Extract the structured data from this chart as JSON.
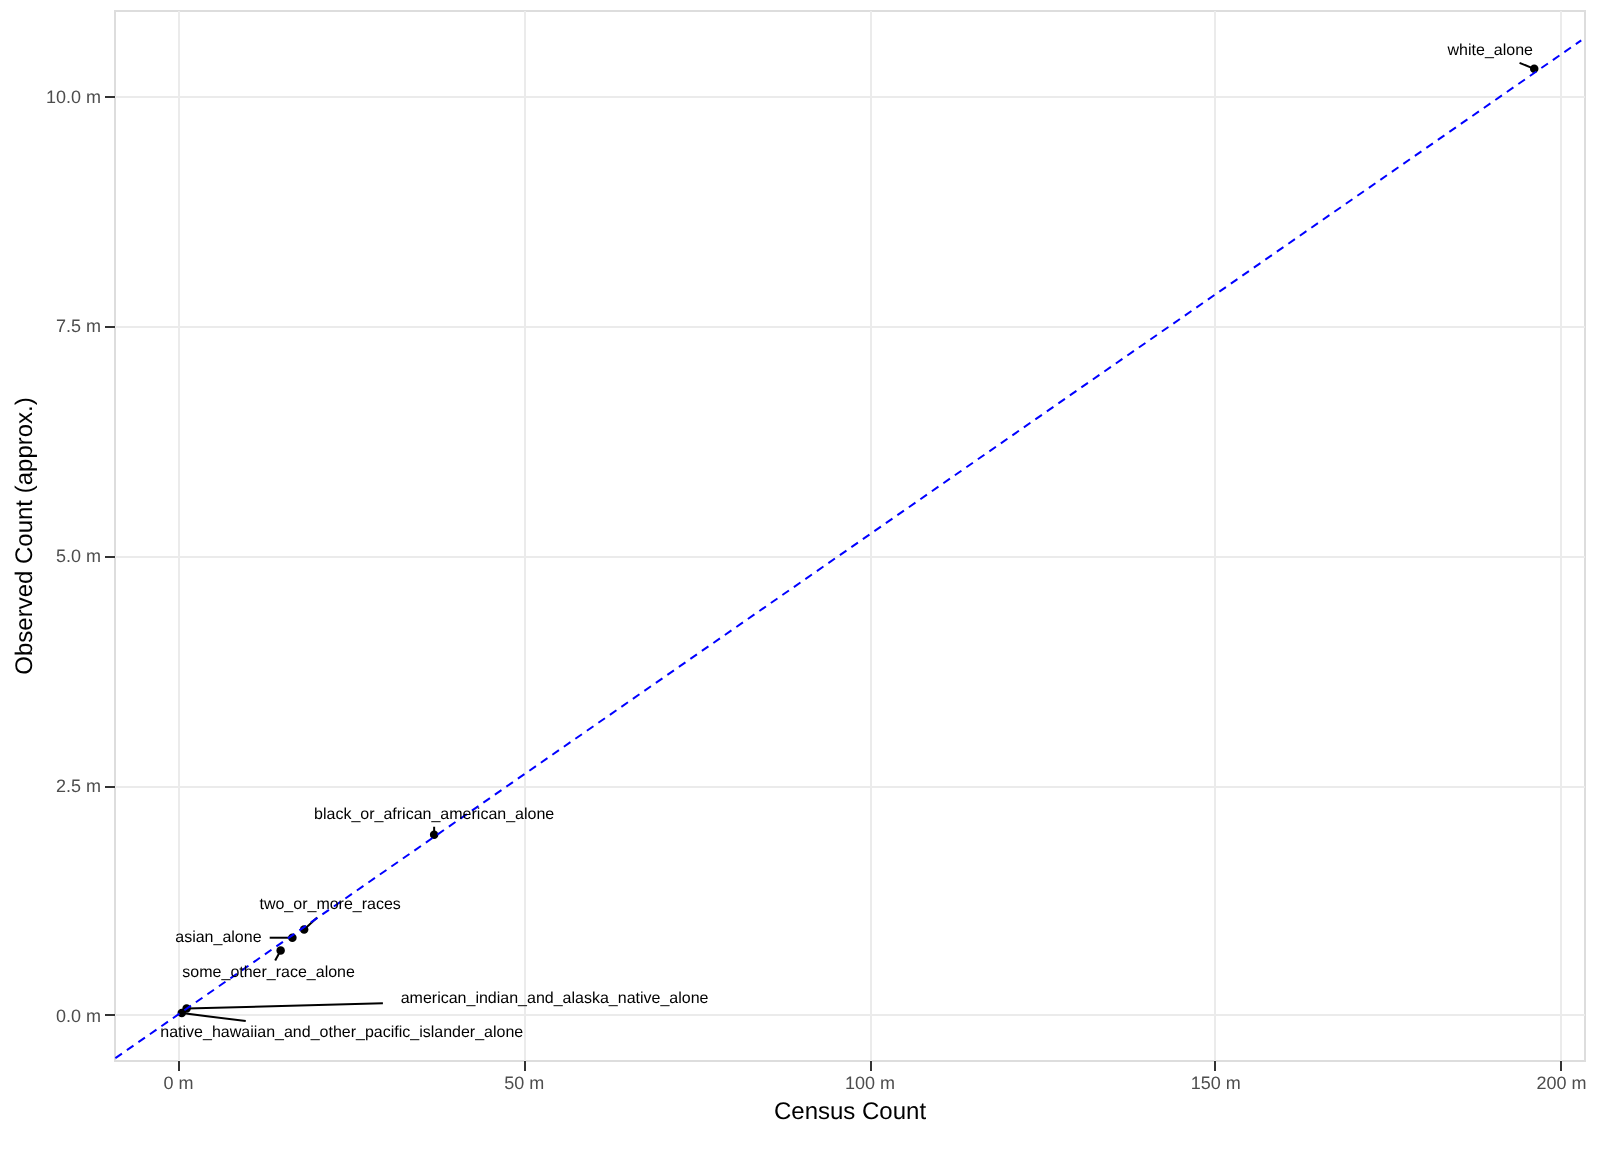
{
  "chart_data": {
    "type": "scatter",
    "xlabel": "Census Count",
    "ylabel": "Observed Count (approx.)",
    "x": [
      196.2,
      37.1,
      18.3,
      16.6,
      14.9,
      1.3,
      0.6
    ],
    "series": [
      {
        "color": "#000000",
        "marker": "circle",
        "values": [
          10.29,
          1.96,
          0.93,
          0.84,
          0.7,
          0.07,
          0.02
        ]
      },
      {
        "type": "line",
        "color": "#0000ff",
        "line_style": "dashed",
        "x": [
          -9,
          203
        ],
        "values": [
          -0.47,
          10.6
        ]
      }
    ],
    "annotations": [
      {
        "text": "white_alone",
        "x": 196.2,
        "y": 10.29
      },
      {
        "text": "black_or_african_american_alone",
        "x": 37.1,
        "y": 1.96
      },
      {
        "text": "two_or_more_races",
        "x": 18.3,
        "y": 0.93
      },
      {
        "text": "asian_alone",
        "x": 16.6,
        "y": 0.84
      },
      {
        "text": "some_other_race_alone",
        "x": 14.9,
        "y": 0.7
      },
      {
        "text": "american_indian_and_alaska_native_alone",
        "x": 1.3,
        "y": 0.07
      },
      {
        "text": "native_hawaiian_and_other_pacific_islander_alone",
        "x": 0.6,
        "y": 0.02
      }
    ],
    "xlim": [
      -9.2,
      203.4
    ],
    "ylim": [
      -0.49,
      10.93
    ],
    "xticks": [
      {
        "value": 0,
        "label": "0 m"
      },
      {
        "value": 50,
        "label": "50 m"
      },
      {
        "value": 100,
        "label": "100 m"
      },
      {
        "value": 150,
        "label": "150 m"
      },
      {
        "value": 200,
        "label": "200 m"
      }
    ],
    "yticks": [
      {
        "value": 0,
        "label": "0.0 m"
      },
      {
        "value": 2.5,
        "label": "2.5 m"
      },
      {
        "value": 5,
        "label": "5.0 m"
      },
      {
        "value": 7.5,
        "label": "7.5 m"
      },
      {
        "value": 10,
        "label": "10.0 m"
      }
    ],
    "grid": true
  }
}
